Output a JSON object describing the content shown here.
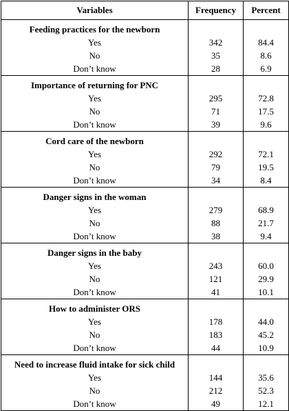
{
  "headers": {
    "variables": "Variables",
    "frequency": "Frequency",
    "percent": "Percent"
  },
  "sections": [
    {
      "title": "Feeding practices for the newborn",
      "rows": [
        {
          "label": "Yes",
          "frequency": "342",
          "percent": "84.4"
        },
        {
          "label": "No",
          "frequency": "35",
          "percent": "8.6"
        },
        {
          "label": "Don’t know",
          "frequency": "28",
          "percent": "6.9"
        }
      ]
    },
    {
      "title": "Importance of returning for PNC",
      "rows": [
        {
          "label": "Yes",
          "frequency": "295",
          "percent": "72.8"
        },
        {
          "label": "No",
          "frequency": "71",
          "percent": "17.5"
        },
        {
          "label": "Don’t know",
          "frequency": "39",
          "percent": "9.6"
        }
      ]
    },
    {
      "title": "Cord care of the newborn",
      "rows": [
        {
          "label": "Yes",
          "frequency": "292",
          "percent": "72.1"
        },
        {
          "label": "No",
          "frequency": "79",
          "percent": "19.5"
        },
        {
          "label": "Don’t know",
          "frequency": "34",
          "percent": "8.4"
        }
      ]
    },
    {
      "title": "Danger signs in the woman",
      "rows": [
        {
          "label": "Yes",
          "frequency": "279",
          "percent": "68.9"
        },
        {
          "label": "No",
          "frequency": "88",
          "percent": "21.7"
        },
        {
          "label": "Don’t know",
          "frequency": "38",
          "percent": "9.4"
        }
      ]
    },
    {
      "title": "Danger signs in the baby",
      "rows": [
        {
          "label": "Yes",
          "frequency": "243",
          "percent": "60.0"
        },
        {
          "label": "No",
          "frequency": "121",
          "percent": "29.9"
        },
        {
          "label": "Don’t know",
          "frequency": "41",
          "percent": "10.1"
        }
      ]
    },
    {
      "title": "How to administer ORS",
      "rows": [
        {
          "label": "Yes",
          "frequency": "178",
          "percent": "44.0"
        },
        {
          "label": "No",
          "frequency": "183",
          "percent": "45.2"
        },
        {
          "label": "Don’t know",
          "frequency": "44",
          "percent": "10.9"
        }
      ]
    },
    {
      "title": "Need to increase fluid intake for sick child",
      "rows": [
        {
          "label": "Yes",
          "frequency": "144",
          "percent": "35.6"
        },
        {
          "label": "No",
          "frequency": "212",
          "percent": "52.3"
        },
        {
          "label": "Don’t know",
          "frequency": "49",
          "percent": "12.1"
        }
      ]
    }
  ]
}
